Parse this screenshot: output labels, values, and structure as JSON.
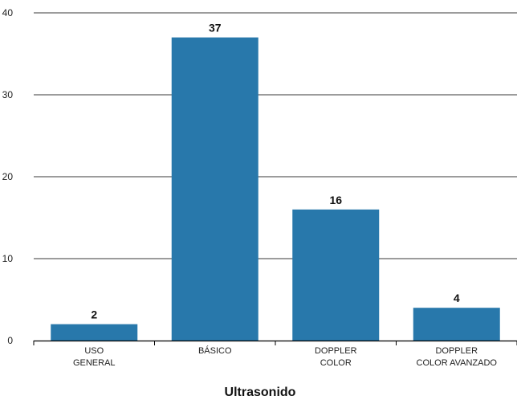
{
  "chart_data": {
    "type": "bar",
    "title": "",
    "xlabel": "Ultrasonido",
    "ylabel": "",
    "ylim": [
      0,
      40
    ],
    "yticks": [
      0,
      10,
      20,
      30,
      40
    ],
    "grid": true,
    "legend": "none",
    "categories": [
      [
        "USO",
        "GENERAL"
      ],
      [
        "BÁSICO"
      ],
      [
        "DOPPLER",
        "COLOR"
      ],
      [
        "DOPPLER",
        "COLOR AVANZADO"
      ]
    ],
    "values": [
      2,
      37,
      16,
      4
    ],
    "bar_color": "#2878ab",
    "grid_color": "#3a3a3a"
  }
}
